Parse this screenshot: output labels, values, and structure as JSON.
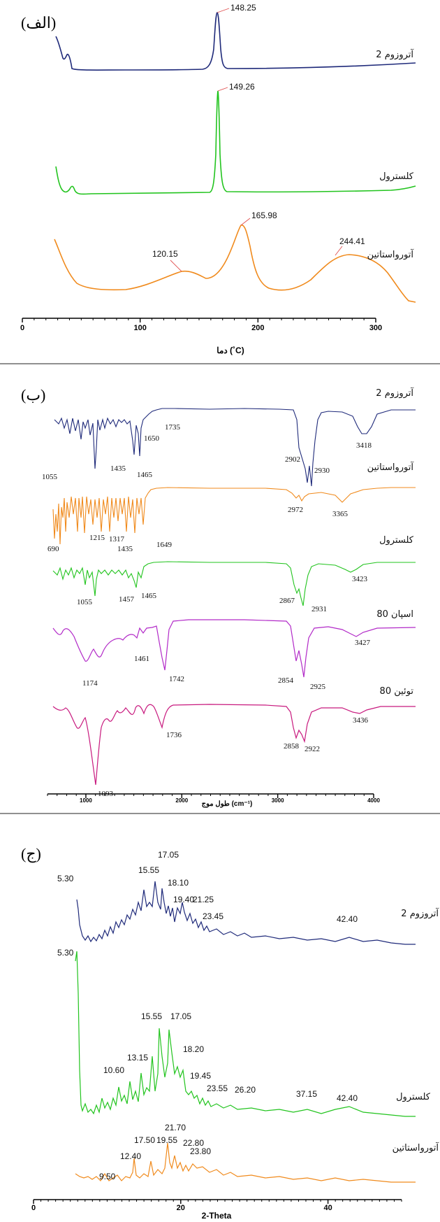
{
  "chart_data": [
    {
      "type": "line",
      "panel_label": "(الف)",
      "xlabel": "دما (˚C)",
      "xlim": [
        0,
        300
      ],
      "x_ticks": [
        0,
        100,
        200,
        300
      ],
      "series": [
        {
          "name": "آتروزوم 2",
          "color": "#1f2a7a",
          "peaks": [
            "148.25"
          ]
        },
        {
          "name": "کلسترول",
          "color": "#22c41e",
          "peaks": [
            "149.26"
          ]
        },
        {
          "name": "آتورواستاتین",
          "color": "#f08a1c",
          "peaks": [
            "120.15",
            "165.98",
            "244.41"
          ]
        }
      ]
    },
    {
      "type": "line",
      "panel_label": "(ب)",
      "xlabel": "طول موج (cm⁻¹)",
      "xlim": [
        600,
        4000
      ],
      "x_ticks": [
        1000,
        2000,
        3000,
        4000
      ],
      "series": [
        {
          "name": "آتروزوم 2",
          "color": "#1f2a7a",
          "peaks": [
            "1055",
            "1435",
            "1465",
            "1650",
            "1735",
            "2902",
            "2930",
            "3418"
          ]
        },
        {
          "name": "آتورواستاتین",
          "color": "#f08a1c",
          "peaks": [
            "690",
            "1215",
            "1317",
            "1435",
            "1649",
            "2972",
            "3365"
          ]
        },
        {
          "name": "کلسترول",
          "color": "#22c41e",
          "peaks": [
            "1055",
            "1457",
            "1465",
            "2867",
            "2931",
            "3423"
          ]
        },
        {
          "name": "اسپان 80",
          "color": "#b22ac8",
          "peaks": [
            "1174",
            "1461",
            "1742",
            "2854",
            "2925",
            "3427"
          ]
        },
        {
          "name": "توئین 80",
          "color": "#c8197e",
          "peaks": [
            "1093",
            "1736",
            "2858",
            "2922",
            "3436"
          ]
        }
      ]
    },
    {
      "type": "line",
      "panel_label": "(ج)",
      "xlabel": "2-Theta",
      "xlim": [
        0,
        50
      ],
      "x_ticks": [
        0,
        20,
        40
      ],
      "series": [
        {
          "name": "آتروزوم 2",
          "color": "#1f2a7a",
          "peaks": [
            "5.30",
            "15.55",
            "17.05",
            "18.10",
            "19.40",
            "21.25",
            "23.45",
            "42.40"
          ]
        },
        {
          "name": "کلسترول",
          "color": "#22c41e",
          "peaks": [
            "5.30",
            "10.60",
            "13.15",
            "15.55",
            "17.05",
            "18.20",
            "19.45",
            "23.55",
            "26.20",
            "37.15",
            "42.40"
          ]
        },
        {
          "name": "آتورواستاتین",
          "color": "#f08a1c",
          "peaks": [
            "9.50",
            "12.40",
            "17.50",
            "19.55",
            "21.70",
            "22.80",
            "23.80"
          ]
        }
      ]
    }
  ]
}
